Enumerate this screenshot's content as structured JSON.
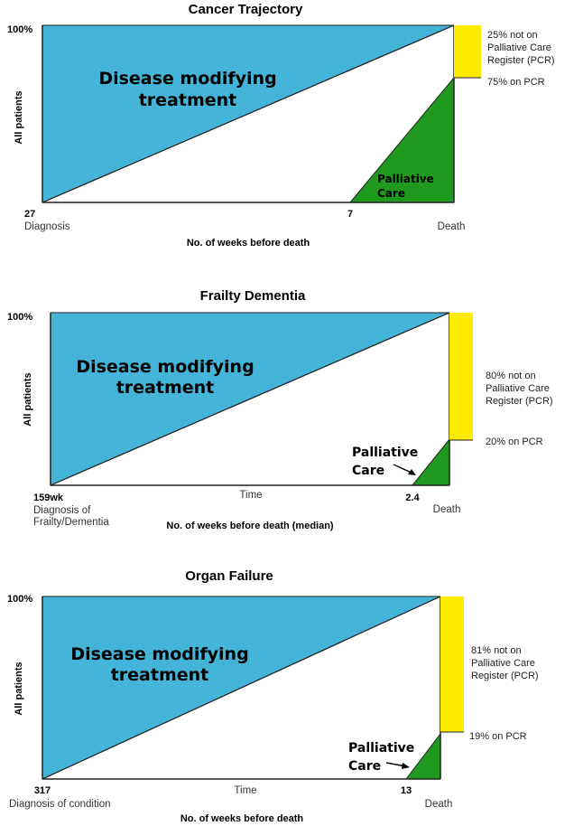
{
  "colors": {
    "treatment": "#44b4d8",
    "palliative": "#1f9a1f",
    "not_on_pcr": "#ffea00",
    "outline": "#222222"
  },
  "cancer": {
    "title": "Cancer Trajectory",
    "y_top": "100%",
    "y_label": "All patients",
    "treatment_label": [
      "Disease modifying",
      "treatment"
    ],
    "palliative_label": [
      "Palliative",
      "Care"
    ],
    "start_tick": "27",
    "start_label": "Diagnosis",
    "pc_tick": "7",
    "end_label": "Death",
    "x_label": "No. of weeks before death",
    "not_pcr_label": [
      "25% not on",
      "Palliative Care",
      "Register (PCR)"
    ],
    "on_pcr_label": "75% on PCR",
    "pcr_percent": 75
  },
  "frailty": {
    "title": "Frailty Dementia",
    "y_top": "100%",
    "y_label": "All patients",
    "treatment_label": [
      "Disease modifying",
      "treatment"
    ],
    "palliative_label": [
      "Palliative",
      "Care"
    ],
    "start_tick": "159wk",
    "start_label": [
      "Diagnosis of",
      "Frailty/Dementia"
    ],
    "mid_label": "Time",
    "pc_tick": "2.4",
    "end_label": "Death",
    "x_label": "No. of weeks before death (median)",
    "not_pcr_label": [
      "80% not on",
      "Palliative Care",
      "Register (PCR)"
    ],
    "on_pcr_label": "20% on PCR",
    "pcr_percent": 20
  },
  "organ": {
    "title": "Organ Failure",
    "y_top": "100%",
    "y_label": "All patients",
    "treatment_label": [
      "Disease modifying",
      "treatment"
    ],
    "palliative_label": [
      "Palliative",
      "Care"
    ],
    "start_tick": "317",
    "start_label": "Diagnosis of condition",
    "mid_label": "Time",
    "pc_tick": "13",
    "end_label": "Death",
    "x_label": "No. of weeks before death",
    "not_pcr_label": [
      "81% not on",
      "Palliative Care",
      "Register (PCR)"
    ],
    "on_pcr_label": "19% on PCR",
    "pcr_percent": 19
  }
}
